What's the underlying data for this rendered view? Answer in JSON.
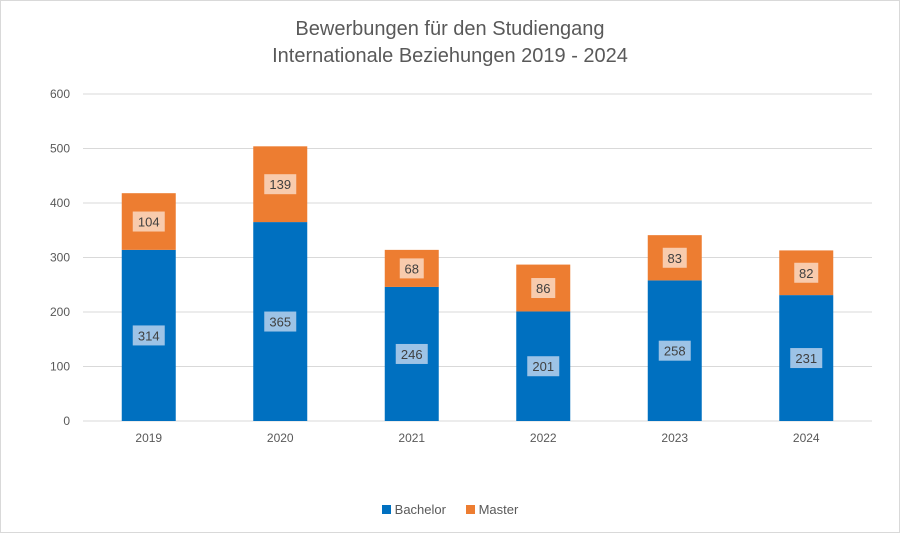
{
  "chart_data": {
    "type": "bar",
    "stacked": true,
    "title": [
      "Bewerbungen für den Studiengang",
      "Internationale Beziehungen 2019 - 2024"
    ],
    "xlabel": "",
    "ylabel": "",
    "categories": [
      "2019",
      "2020",
      "2021",
      "2022",
      "2023",
      "2024"
    ],
    "series": [
      {
        "name": "Bachelor",
        "color": "#0070C0",
        "label_bg": "#9DC3E6",
        "values": [
          314,
          365,
          246,
          201,
          258,
          231
        ]
      },
      {
        "name": "Master",
        "color": "#ED7D31",
        "label_bg": "#F8CBAD",
        "values": [
          104,
          139,
          68,
          86,
          83,
          82
        ]
      }
    ],
    "ylim": [
      0,
      600
    ],
    "yticks": [
      0,
      100,
      200,
      300,
      400,
      500,
      600
    ],
    "grid": true,
    "legend": "bottom-center"
  }
}
